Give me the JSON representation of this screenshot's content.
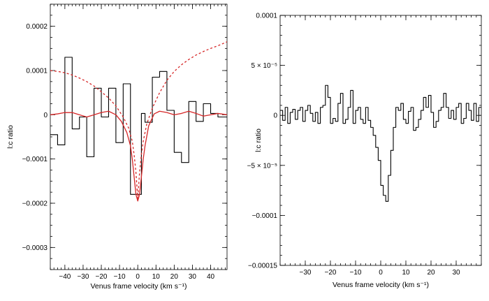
{
  "chart_data": [
    {
      "type": "line",
      "xlabel": "Venus frame velocity (km s⁻¹)",
      "ylabel": "l:c ratio",
      "xlim": [
        -48,
        49
      ],
      "ylim": [
        -0.00035,
        0.00025
      ],
      "x_ticks": [
        -40,
        -30,
        -20,
        -10,
        0,
        10,
        20,
        30,
        40
      ],
      "x_tick_labels": [
        "−40",
        "−30",
        "−20",
        "−10",
        "0",
        "10",
        "20",
        "30",
        "40"
      ],
      "y_ticks": [
        -0.0003,
        -0.0002,
        -0.0001,
        0,
        0.0001,
        0.0002
      ],
      "y_tick_labels": [
        "−0.0003",
        "−0.0002",
        "−0.0001",
        "0",
        "0.0001",
        "0.0002"
      ],
      "grid": false,
      "series": [
        {
          "style": "step",
          "color": "#000000",
          "bin_edges": [
            -48,
            -44,
            -40,
            -36,
            -32,
            -28,
            -24,
            -20,
            -16,
            -12,
            -8,
            -4,
            -2,
            2,
            4,
            8,
            12,
            16,
            20,
            24,
            28,
            32,
            36,
            40,
            44,
            49
          ],
          "values": [
            -4.5e-05,
            -6.8e-05,
            0.00013,
            -3.2e-05,
            -5e-06,
            -9.5e-05,
            6e-05,
            -5e-06,
            6e-05,
            -6.3e-05,
            7e-05,
            -0.00018,
            -0.00018,
            3e-06,
            -1.7e-05,
            8.5e-05,
            9.8e-05,
            1e-05,
            -8.5e-05,
            -0.000108,
            3e-05,
            -1.5e-05,
            2.5e-05,
            3e-06,
            -5e-06
          ]
        },
        {
          "style": "solid",
          "color": "#d62728",
          "x": [
            -48,
            -44,
            -40,
            -36,
            -32,
            -28,
            -24,
            -20,
            -16,
            -12,
            -9,
            -6,
            -4,
            -3,
            -2,
            -1,
            0,
            1,
            2,
            3,
            4,
            6,
            9,
            12,
            16,
            20,
            24,
            28,
            32,
            36,
            40,
            44,
            49
          ],
          "y": [
            0.0,
            2e-06,
            5e-06,
            5e-06,
            0.0,
            -5e-06,
            0.0,
            5e-06,
            8e-06,
            0.0,
            -1.5e-05,
            -4e-05,
            -7e-05,
            -0.0001,
            -0.00014,
            -0.00018,
            -0.000195,
            -0.00018,
            -0.00014,
            -0.0001,
            -7e-05,
            -2.5e-05,
            2e-06,
            8e-06,
            5e-06,
            0.0,
            3e-06,
            8e-06,
            3e-06,
            -3e-06,
            0.0,
            3e-06,
            0.0
          ]
        },
        {
          "style": "dashed",
          "color": "#d62728",
          "x": [
            -48,
            -44,
            -40,
            -36,
            -32,
            -28,
            -24,
            -20,
            -16,
            -12,
            -8,
            -5,
            -3,
            -2,
            -1,
            0,
            1,
            2,
            3,
            5,
            8,
            12,
            16,
            20,
            24,
            28,
            32,
            36,
            40,
            44,
            49
          ],
          "y": [
            0.0001,
            9.8e-05,
            9.5e-05,
            9e-05,
            8.3e-05,
            7.5e-05,
            6.5e-05,
            5.2e-05,
            3.8e-05,
            2e-05,
            -5e-06,
            -3e-05,
            -6e-05,
            -9e-05,
            -0.00013,
            -0.00019,
            -0.00013,
            -9e-05,
            -6e-05,
            -2e-05,
            1.5e-05,
            5e-05,
            7.8e-05,
            9.8e-05,
            0.000113,
            0.000125,
            0.000135,
            0.000143,
            0.00015,
            0.000156,
            0.000165
          ]
        }
      ]
    },
    {
      "type": "line",
      "xlabel": "Venus frame velocity (km s⁻¹)",
      "ylabel": "l:c ratio",
      "xlim": [
        -40,
        40
      ],
      "ylim": [
        -0.00015,
        0.0001
      ],
      "x_ticks": [
        -30,
        -20,
        -10,
        0,
        10,
        20,
        30
      ],
      "x_tick_labels": [
        "−30",
        "−20",
        "−10",
        "0",
        "10",
        "20",
        "30"
      ],
      "y_ticks": [
        -0.00015,
        -0.0001,
        -5e-05,
        0,
        5e-05,
        0.0001
      ],
      "y_tick_labels": [
        "−0.00015",
        "−0.0001",
        "−5 × 10⁻⁵",
        "0",
        "5 × 10⁻⁵",
        "0.0001"
      ],
      "grid": false,
      "series": [
        {
          "style": "step",
          "color": "#000000",
          "bin_edges": [
            -40,
            -39,
            -38,
            -37,
            -36,
            -35,
            -34,
            -33,
            -32,
            -31,
            -30,
            -29,
            -28,
            -27,
            -26,
            -25,
            -24,
            -23,
            -22,
            -21,
            -20,
            -19,
            -18,
            -17,
            -16,
            -15,
            -14,
            -13,
            -12,
            -11,
            -10,
            -9,
            -8,
            -7,
            -6,
            -5,
            -4,
            -3,
            -2,
            -1,
            0,
            1,
            2,
            3,
            4,
            5,
            6,
            7,
            8,
            9,
            10,
            11,
            12,
            13,
            14,
            15,
            16,
            17,
            18,
            19,
            20,
            21,
            22,
            23,
            24,
            25,
            26,
            27,
            28,
            29,
            30,
            31,
            32,
            33,
            34,
            35,
            36,
            37,
            38,
            39,
            40
          ],
          "values": [
            5e-06,
            -5e-06,
            8e-06,
            -8e-06,
            3e-06,
            6e-06,
            -4e-06,
            5e-06,
            8e-06,
            -6e-06,
            5e-06,
            1e-05,
            2e-06,
            -6e-06,
            3e-06,
            -8e-06,
            8e-06,
            1e-05,
            3e-05,
            1.8e-05,
            -8e-06,
            -3e-06,
            -6e-06,
            1.2e-05,
            2.2e-05,
            -8e-06,
            -4e-06,
            8e-06,
            2.5e-05,
            -8e-06,
            5e-06,
            8e-06,
            -4e-06,
            -8e-06,
            8e-06,
            -5e-06,
            -1.2e-05,
            -2e-05,
            -3.2e-05,
            -4.5e-05,
            -7e-05,
            -8e-05,
            -8.6e-05,
            -6e-05,
            -3.5e-05,
            -1.2e-05,
            8e-06,
            5e-06,
            1.2e-05,
            -4e-06,
            -8e-06,
            4e-06,
            8e-06,
            -1.5e-05,
            -1.2e-05,
            -4e-06,
            5e-06,
            1.8e-05,
            8e-06,
            2e-05,
            3e-06,
            -1.2e-05,
            -6e-06,
            5e-06,
            8e-06,
            2.2e-05,
            8e-06,
            -3e-06,
            5e-06,
            -4e-06,
            8e-06,
            1.2e-05,
            -8e-06,
            -3e-06,
            1.2e-05,
            5e-06,
            -5e-06,
            1.2e-05,
            -6e-06,
            8e-06
          ]
        }
      ]
    }
  ]
}
